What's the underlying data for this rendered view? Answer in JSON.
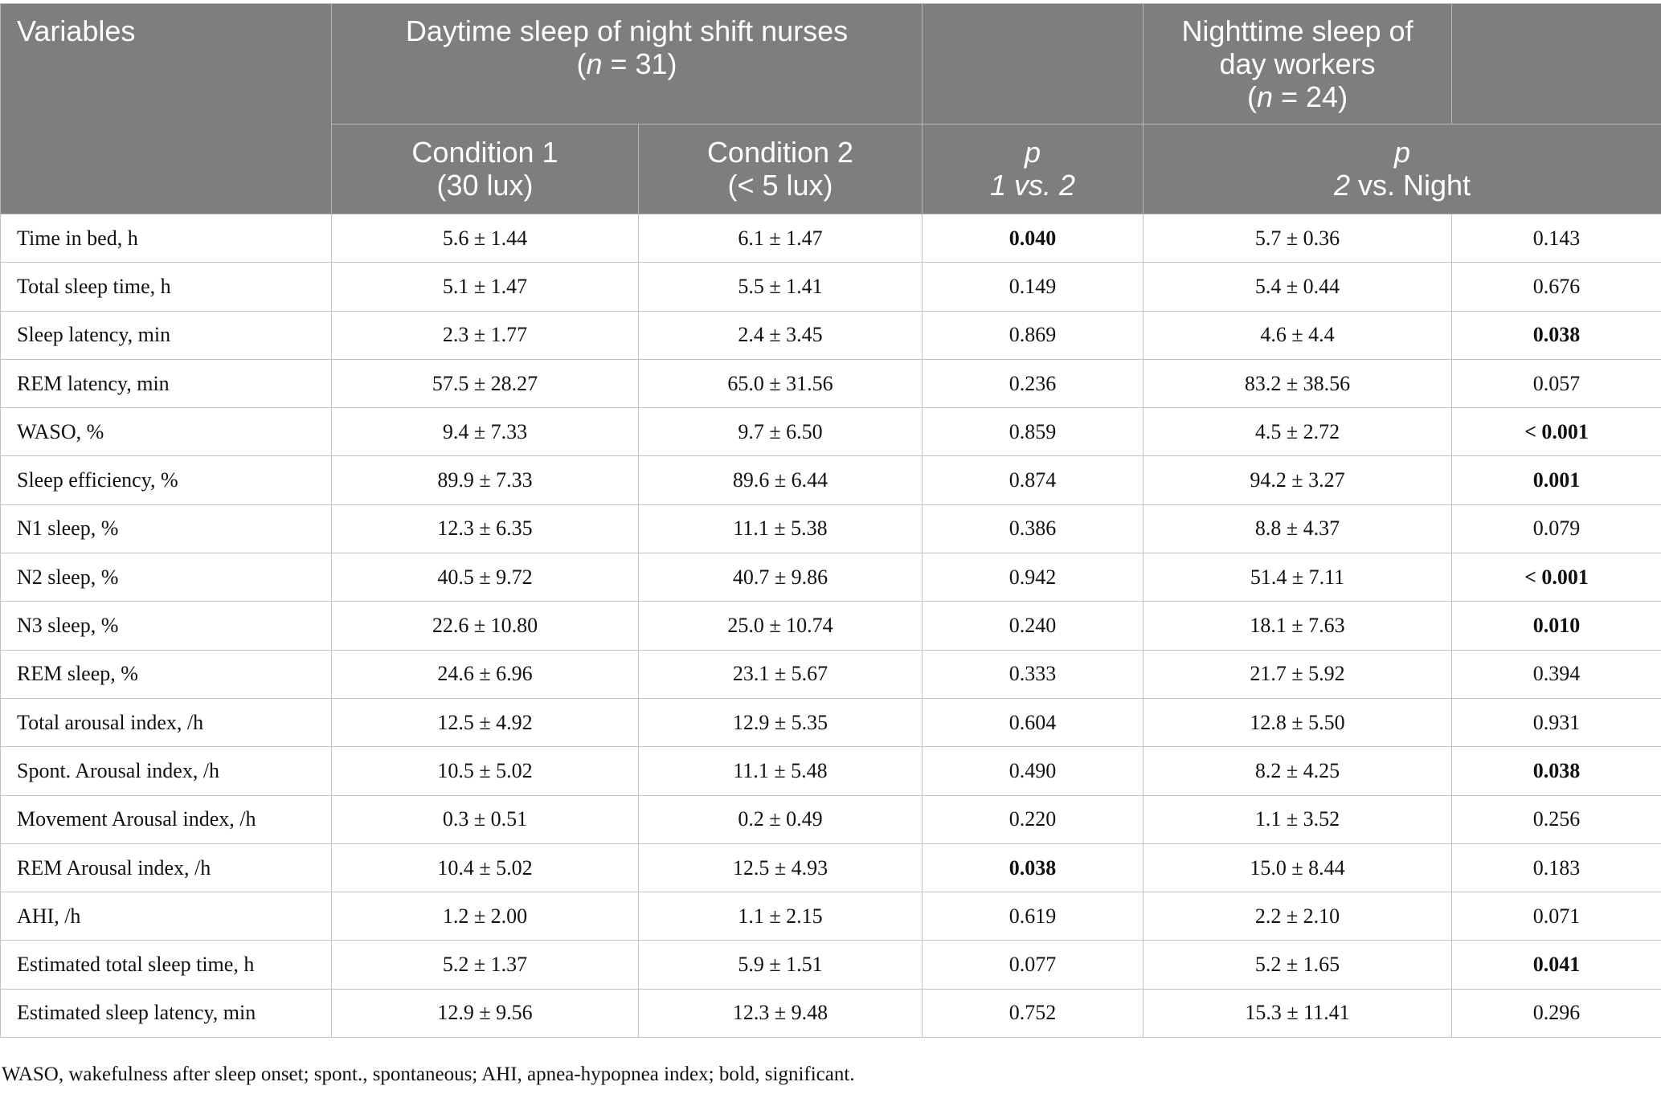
{
  "header": {
    "variables": "Variables",
    "group1_line1": "Daytime sleep of night shift nurses",
    "group1_n_prefix": "(",
    "group1_n_italic": "n",
    "group1_n_rest": " = 31)",
    "group2_line1": "Nighttime sleep of",
    "group2_line2": "day workers",
    "group2_n_prefix": "(",
    "group2_n_italic": "n",
    "group2_n_rest": " = 24)",
    "cond1_line1": "Condition 1",
    "cond1_line2": "(30 lux)",
    "cond2_line1": "Condition 2",
    "cond2_line2": "(< 5 lux)",
    "p1_line1": "p",
    "p1_line2": "1 vs. 2",
    "p2_line1": "p",
    "p2_line2_italic": "2",
    "p2_line2_rest": " vs. Night"
  },
  "rows": [
    {
      "variable": "Time in bed, h",
      "cond1": "5.6 ± 1.44",
      "cond2": "6.1 ± 1.47",
      "p1": "0.040",
      "p1_sig": true,
      "night": "5.7 ± 0.36",
      "p2": "0.143",
      "p2_sig": false
    },
    {
      "variable": "Total sleep time, h",
      "cond1": "5.1 ± 1.47",
      "cond2": "5.5 ± 1.41",
      "p1": "0.149",
      "p1_sig": false,
      "night": "5.4 ± 0.44",
      "p2": "0.676",
      "p2_sig": false
    },
    {
      "variable": "Sleep latency, min",
      "cond1": "2.3 ± 1.77",
      "cond2": "2.4 ± 3.45",
      "p1": "0.869",
      "p1_sig": false,
      "night": "4.6 ± 4.4",
      "p2": "0.038",
      "p2_sig": true
    },
    {
      "variable": "REM latency, min",
      "cond1": "57.5 ± 28.27",
      "cond2": "65.0 ± 31.56",
      "p1": "0.236",
      "p1_sig": false,
      "night": "83.2 ± 38.56",
      "p2": "0.057",
      "p2_sig": false
    },
    {
      "variable": "WASO, %",
      "cond1": "9.4 ± 7.33",
      "cond2": "9.7 ± 6.50",
      "p1": "0.859",
      "p1_sig": false,
      "night": "4.5 ± 2.72",
      "p2": "< 0.001",
      "p2_sig": true
    },
    {
      "variable": "Sleep efficiency, %",
      "cond1": "89.9 ± 7.33",
      "cond2": "89.6 ± 6.44",
      "p1": "0.874",
      "p1_sig": false,
      "night": "94.2 ± 3.27",
      "p2": "0.001",
      "p2_sig": true
    },
    {
      "variable": "N1 sleep, %",
      "cond1": "12.3 ± 6.35",
      "cond2": "11.1 ± 5.38",
      "p1": "0.386",
      "p1_sig": false,
      "night": "8.8 ± 4.37",
      "p2": "0.079",
      "p2_sig": false
    },
    {
      "variable": "N2 sleep, %",
      "cond1": "40.5 ± 9.72",
      "cond2": "40.7 ± 9.86",
      "p1": "0.942",
      "p1_sig": false,
      "night": "51.4 ± 7.11",
      "p2": "< 0.001",
      "p2_sig": true
    },
    {
      "variable": "N3 sleep, %",
      "cond1": "22.6 ± 10.80",
      "cond2": "25.0 ± 10.74",
      "p1": "0.240",
      "p1_sig": false,
      "night": "18.1 ± 7.63",
      "p2": "0.010",
      "p2_sig": true
    },
    {
      "variable": "REM sleep, %",
      "cond1": "24.6 ± 6.96",
      "cond2": "23.1 ± 5.67",
      "p1": "0.333",
      "p1_sig": false,
      "night": "21.7 ± 5.92",
      "p2": "0.394",
      "p2_sig": false
    },
    {
      "variable": "Total arousal index, /h",
      "cond1": "12.5 ± 4.92",
      "cond2": "12.9 ± 5.35",
      "p1": "0.604",
      "p1_sig": false,
      "night": "12.8 ± 5.50",
      "p2": "0.931",
      "p2_sig": false
    },
    {
      "variable": "Spont. Arousal index, /h",
      "cond1": "10.5 ± 5.02",
      "cond2": "11.1 ± 5.48",
      "p1": "0.490",
      "p1_sig": false,
      "night": "8.2 ± 4.25",
      "p2": "0.038",
      "p2_sig": true
    },
    {
      "variable": "Movement Arousal index, /h",
      "cond1": "0.3 ± 0.51",
      "cond2": "0.2 ± 0.49",
      "p1": "0.220",
      "p1_sig": false,
      "night": "1.1 ± 3.52",
      "p2": "0.256",
      "p2_sig": false
    },
    {
      "variable": "REM Arousal index, /h",
      "cond1": "10.4 ± 5.02",
      "cond2": "12.5 ± 4.93",
      "p1": "0.038",
      "p1_sig": true,
      "night": "15.0 ± 8.44",
      "p2": "0.183",
      "p2_sig": false
    },
    {
      "variable": "AHI, /h",
      "cond1": "1.2 ± 2.00",
      "cond2": "1.1 ± 2.15",
      "p1": "0.619",
      "p1_sig": false,
      "night": "2.2 ± 2.10",
      "p2": "0.071",
      "p2_sig": false
    },
    {
      "variable": "Estimated total sleep time, h",
      "cond1": "5.2 ± 1.37",
      "cond2": "5.9 ± 1.51",
      "p1": "0.077",
      "p1_sig": false,
      "night": "5.2 ± 1.65",
      "p2": "0.041",
      "p2_sig": true
    },
    {
      "variable": "Estimated sleep latency, min",
      "cond1": "12.9 ± 9.56",
      "cond2": "12.3 ± 9.48",
      "p1": "0.752",
      "p1_sig": false,
      "night": "15.3 ± 11.41",
      "p2": "0.296",
      "p2_sig": false
    }
  ],
  "footnote": "WASO, wakefulness after sleep onset; spont., spontaneous; AHI, apnea-hypopnea index; bold, significant."
}
